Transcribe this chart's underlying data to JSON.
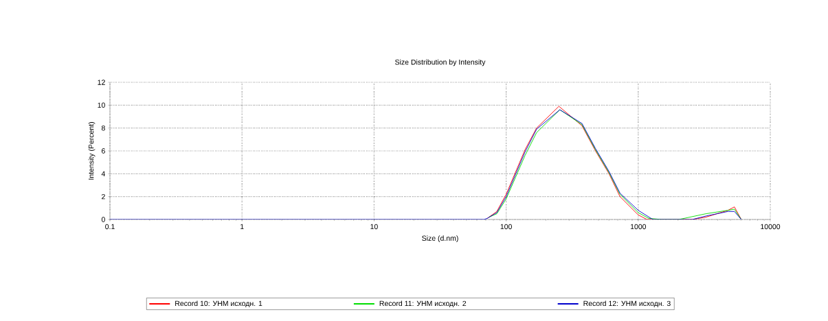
{
  "chart_data": {
    "type": "line",
    "title": "Size Distribution by Intensity",
    "xlabel": "Size (d.nm)",
    "ylabel": "Intensity (Percent)",
    "log": "x",
    "xlim": [
      0.1,
      10000
    ],
    "xticks": [
      {
        "value": 0.1,
        "label": "0.1"
      },
      1,
      10,
      100,
      1000,
      10000
    ],
    "ylim": [
      0,
      12
    ],
    "yticks": [
      0,
      2,
      4,
      6,
      8,
      10,
      12
    ],
    "grid": true,
    "legend": "bottom",
    "series": [
      {
        "name": "Record 10: УНМ исходн. 1",
        "color": "#ff0000",
        "x": [
          72,
          85,
          100,
          139,
          170,
          251,
          375,
          475,
          601,
          728,
          1000,
          1166,
          2570,
          2890,
          3250,
          4780,
          5350,
          6030
        ],
        "values": [
          0.1,
          0.7,
          2.2,
          6.1,
          8,
          9.9,
          8.2,
          6,
          4,
          2,
          0.4,
          0,
          0,
          0.1,
          0.2,
          0.8,
          1.1,
          0
        ]
      },
      {
        "name": "Record 11: УНМ исходн. 2",
        "color": "#00dd00",
        "x": [
          74,
          85,
          100,
          139,
          170,
          255,
          375,
          475,
          601,
          728,
          1000,
          1200,
          1500,
          2030,
          3250,
          4780,
          5350,
          6030
        ],
        "values": [
          0.2,
          0.5,
          1.8,
          5.6,
          7.6,
          9.6,
          8.3,
          6.1,
          4.1,
          2.2,
          0.6,
          0.1,
          0,
          0,
          0.5,
          0.8,
          0.9,
          0
        ]
      },
      {
        "name": "Record 12: УНМ исходн. 3",
        "color": "#0000cc",
        "x": [
          0.1,
          68,
          72,
          85,
          100,
          139,
          170,
          255,
          375,
          475,
          601,
          728,
          1000,
          1290,
          2570,
          3250,
          4780,
          5350,
          6030
        ],
        "values": [
          0,
          0,
          0.1,
          0.6,
          2.0,
          5.9,
          7.9,
          9.6,
          8.4,
          6.2,
          4.2,
          2.3,
          0.8,
          0,
          0,
          0.3,
          0.7,
          0.7,
          0
        ]
      }
    ]
  }
}
